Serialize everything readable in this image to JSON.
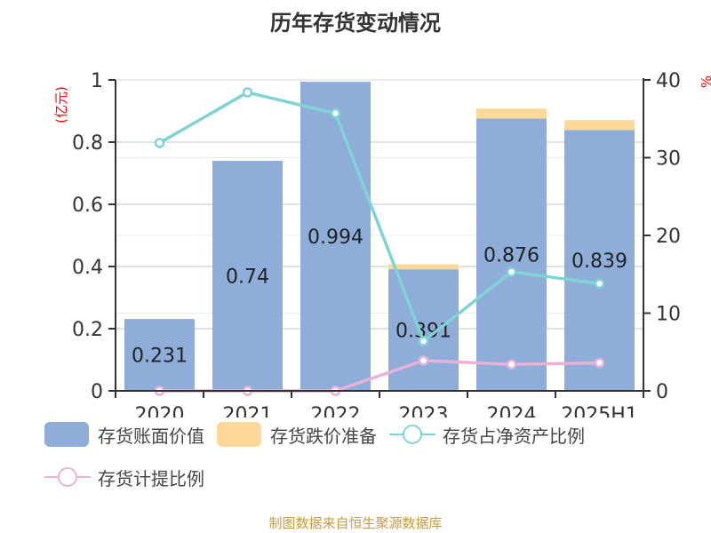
{
  "title": "历年存货变动情况",
  "footer": "制图数据来自恒生聚源数据库",
  "colors": {
    "book_value": "#8eadd9",
    "reserve": "#fdd898",
    "net_asset_ratio": "#7fd3d3",
    "provision_ratio": "#e6b2d6",
    "axis_unit": "#ff0000",
    "footer": "#c89b3c"
  },
  "legend": [
    {
      "label": "存货账面价值",
      "type": "bar",
      "color": "#8eadd9"
    },
    {
      "label": "存货跌价准备",
      "type": "bar",
      "color": "#fdd898"
    },
    {
      "label": "存货占净资产比例",
      "type": "line",
      "color": "#7fd3d3"
    },
    {
      "label": "存货计提比例",
      "type": "line",
      "color": "#e6b2d6"
    }
  ],
  "axes": {
    "left_unit": "(亿元)",
    "right_unit": "%",
    "left_ticks": [
      "0",
      "0.2",
      "0.4",
      "0.6",
      "0.8",
      "1"
    ],
    "right_ticks": [
      "0",
      "10",
      "20",
      "30",
      "40"
    ]
  },
  "chart_data": {
    "type": "bar",
    "title": "历年存货变动情况",
    "categories": [
      "2020",
      "2021",
      "2022",
      "2023",
      "2024",
      "2025H1"
    ],
    "series": [
      {
        "name": "存货账面价值",
        "type": "bar",
        "stack": "inv",
        "axis": "left",
        "values": [
          0.231,
          0.74,
          0.994,
          0.391,
          0.876,
          0.839
        ],
        "labels": [
          "0.231",
          "0.74",
          "0.994",
          "0.391",
          "0.876",
          "0.839"
        ]
      },
      {
        "name": "存货跌价准备",
        "type": "bar",
        "stack": "inv",
        "axis": "left",
        "values": [
          0,
          0,
          0,
          0.016,
          0.032,
          0.032
        ]
      },
      {
        "name": "存货占净资产比例",
        "type": "line",
        "axis": "right",
        "values": [
          31.9,
          38.4,
          35.7,
          6.4,
          15.3,
          13.8
        ]
      },
      {
        "name": "存货计提比例",
        "type": "line",
        "axis": "right",
        "values": [
          0,
          0,
          0,
          3.9,
          3.4,
          3.6
        ]
      }
    ],
    "xlabel": "",
    "ylabel": "(亿元)",
    "y2label": "%",
    "ylim": [
      0,
      1
    ],
    "y2lim": [
      0,
      40
    ],
    "grid": true,
    "legend_position": "bottom"
  }
}
